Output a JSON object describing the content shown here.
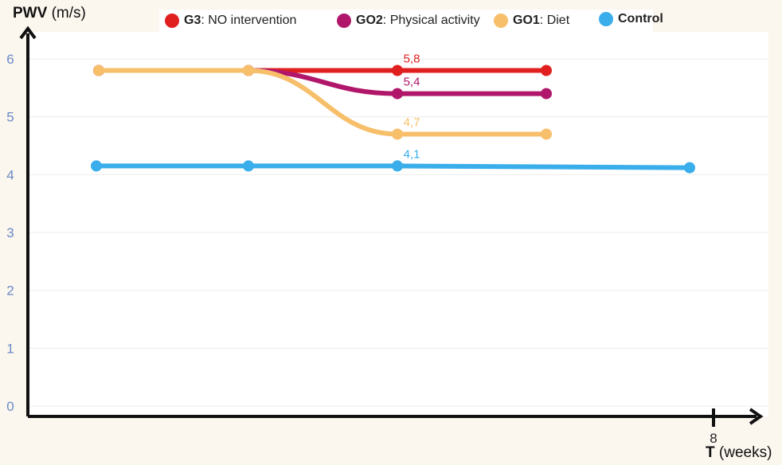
{
  "chart_data": {
    "type": "line",
    "ylabel_name": "PWV",
    "ylabel_unit": "(m/s)",
    "xlabel_name": "T",
    "xlabel_unit": "(weeks)",
    "x_ticks": [
      8
    ],
    "x_tick_labels": [
      "8"
    ],
    "y_ticks": [
      0,
      1,
      2,
      3,
      4,
      5,
      6
    ],
    "ylim": [
      0,
      6
    ],
    "xlim": [
      0,
      8
    ],
    "grid": true,
    "legend_position": "top",
    "x": [
      1,
      3,
      5,
      7
    ],
    "series": [
      {
        "name": "G3",
        "legend_suffix": ": NO intervention",
        "color": "#e0201f",
        "values": [
          5.8,
          5.8,
          5.8,
          5.8
        ],
        "label_index": 2,
        "label": "5,8"
      },
      {
        "name": "GO2",
        "legend_suffix": ": Physical activity",
        "color": "#b0176a",
        "values": [
          5.8,
          5.8,
          5.4,
          5.4
        ],
        "label_index": 2,
        "label": "5,4"
      },
      {
        "name": "GO1",
        "legend_suffix": ": Diet",
        "color": "#f7bf6a",
        "values": [
          5.8,
          5.8,
          4.7,
          4.7
        ],
        "label_index": 2,
        "label": "4,7"
      },
      {
        "name": "Control",
        "legend_suffix": "",
        "color": "#3aaeea",
        "values": [
          4.15,
          4.15,
          4.15,
          4.12
        ],
        "label_index": 2,
        "label": "4,1"
      }
    ]
  }
}
